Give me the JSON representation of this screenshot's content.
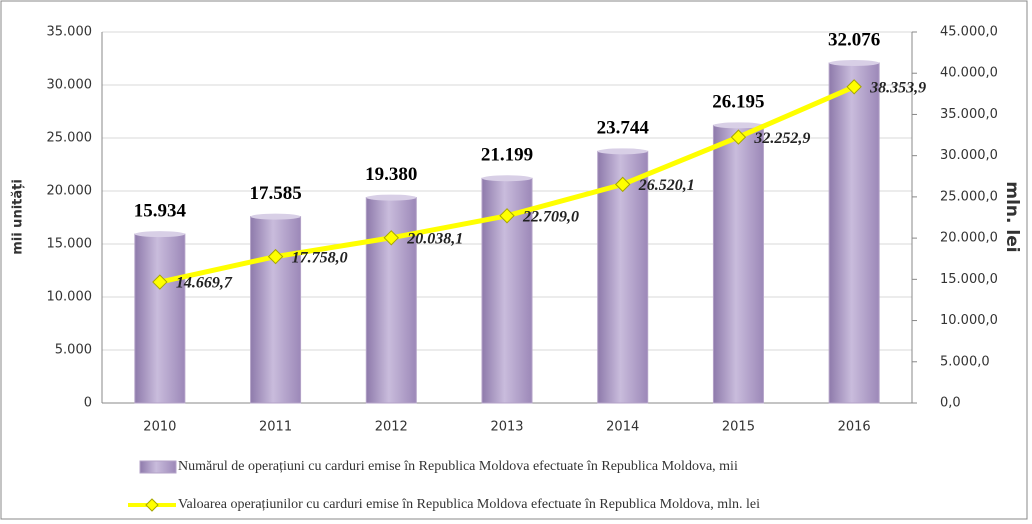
{
  "chart_data": {
    "type": "combo",
    "categories": [
      "2010",
      "2011",
      "2012",
      "2013",
      "2014",
      "2015",
      "2016"
    ],
    "ylabel": "mii unități",
    "y2label": "mln. lei",
    "ylim": [
      0,
      35000
    ],
    "yticks": [
      0,
      {
        "value": 5000,
        "label": "5.000"
      },
      {
        "value": 10000,
        "label": "10.000"
      },
      {
        "value": 15000,
        "label": "15.000"
      },
      {
        "value": 20000,
        "label": "20.000"
      },
      {
        "value": 25000,
        "label": "25.000"
      },
      {
        "value": 30000,
        "label": "30.000"
      },
      {
        "value": 35000,
        "label": "35.000"
      }
    ],
    "y2lim": [
      0,
      45000
    ],
    "y2ticks": [
      {
        "value": 0,
        "label": "0,0"
      },
      {
        "value": 5000,
        "label": "5.000,0"
      },
      {
        "value": 10000,
        "label": "10.000,0"
      },
      {
        "value": 15000,
        "label": "15.000,0"
      },
      {
        "value": 20000,
        "label": "20.000,0"
      },
      {
        "value": 25000,
        "label": "25.000,0"
      },
      {
        "value": 30000,
        "label": "30.000,0"
      },
      {
        "value": 35000,
        "label": "35.000,0"
      },
      {
        "value": 40000,
        "label": "40.000,0"
      },
      {
        "value": 45000,
        "label": "45.000,0"
      }
    ],
    "grid": true,
    "legend": "bottom",
    "series": [
      {
        "name": "Numărul de operațiuni cu carduri emise în Republica Moldova efectuate în Republica Moldova, mii",
        "type": "bar",
        "color": "#b3a2c7",
        "values": [
          15934,
          17585,
          19380,
          21199,
          23744,
          26195,
          32076
        ],
        "value_labels": [
          "15.934",
          "17.585",
          "19.380",
          "21.199",
          "23.744",
          "26.195",
          "32.076"
        ]
      },
      {
        "name": "Valoarea operațiunilor cu carduri emise în Republica Moldova efectuate în Republica Moldova, mln. lei",
        "type": "line",
        "axis": "y2",
        "color": "#ffff00",
        "values": [
          14669.7,
          17758.0,
          20038.1,
          22709.0,
          26520.1,
          32252.9,
          38353.9
        ],
        "value_labels": [
          "14.669,7",
          "17.758,0",
          "20.038,1",
          "22.709,0",
          "26.520,1",
          "32.252,9",
          "38.353,9"
        ]
      }
    ]
  }
}
